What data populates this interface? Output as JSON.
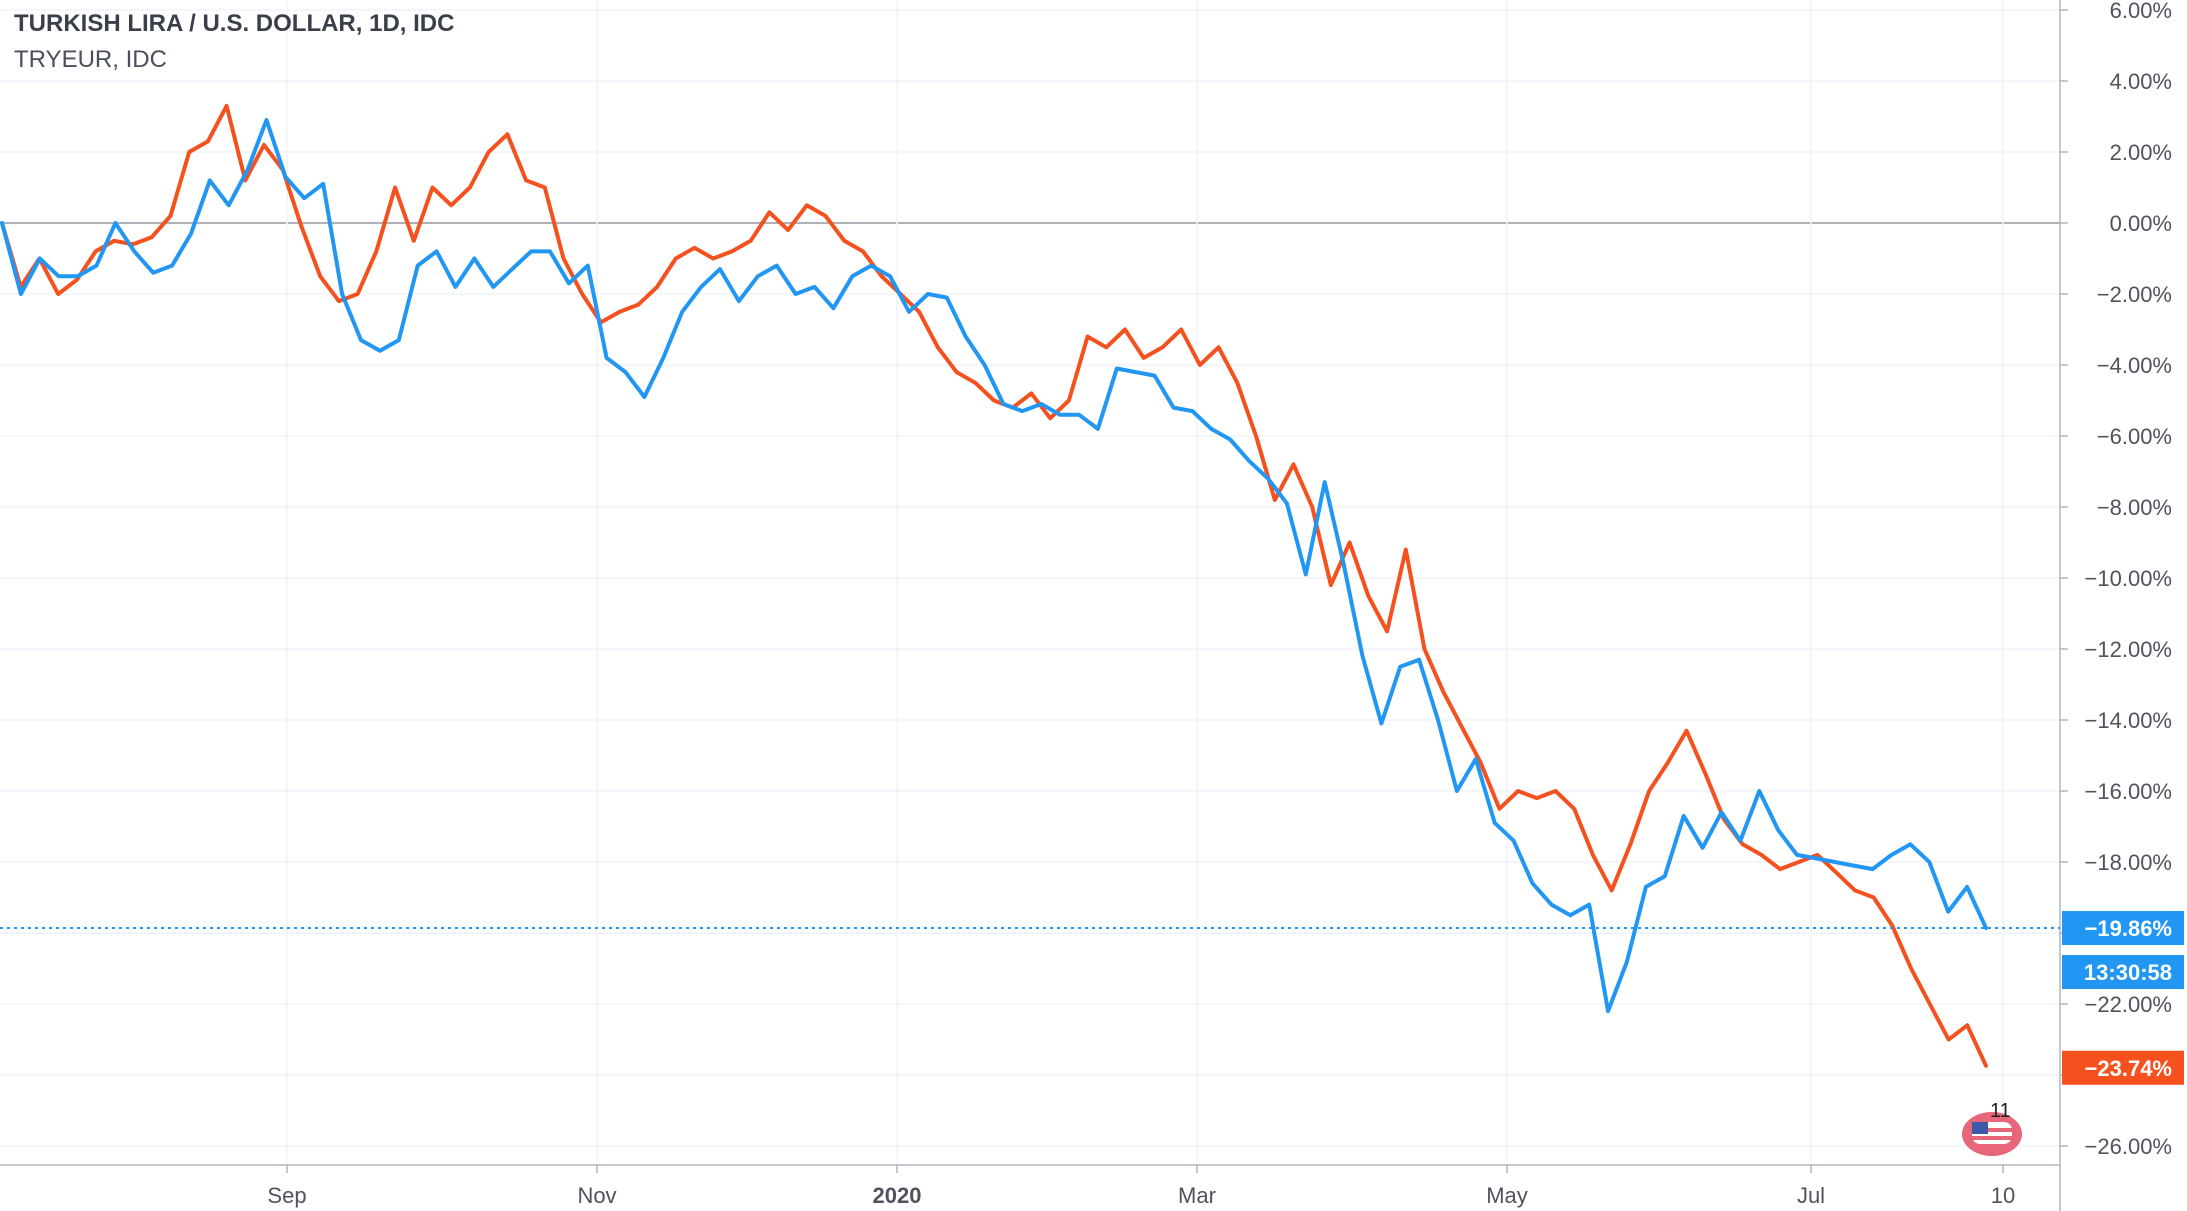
{
  "legend": {
    "title": "TURKISH LIRA / U.S. DOLLAR, 1D, IDC",
    "subtitle": "TRYEUR, IDC"
  },
  "badge": {
    "count": "11",
    "icon": "us-flag-icon"
  },
  "colors": {
    "series_tryusd": "#f4511e",
    "series_tryeur": "#2196f3",
    "grid": "#f0f3fa",
    "axis": "#b2b5be",
    "zero_line": "#9598a1"
  },
  "chart_data": {
    "type": "line",
    "xlabels": [
      "Sep",
      "Nov",
      "2020",
      "Mar",
      "May",
      "Jul",
      "10"
    ],
    "ylim": [
      -27,
      6.5
    ],
    "yticks": [
      6,
      4,
      2,
      0,
      -2,
      -4,
      -6,
      -8,
      -10,
      -12,
      -14,
      -16,
      -18,
      -20,
      -22,
      -24,
      -26
    ],
    "ytick_labels": [
      "6.00%",
      "4.00%",
      "2.00%",
      "0.00%",
      "−2.00%",
      "−4.00%",
      "−6.00%",
      "−8.00%",
      "−10.00%",
      "−12.00%",
      "−14.00%",
      "−16.00%",
      "−18.00%",
      "−20.00%",
      "−22.00%",
      "−24.00%",
      "−26.00%"
    ],
    "countdown": "13:30:58",
    "series": [
      {
        "name": "TRYEUR",
        "last_label": "−19.86%",
        "last_value": -19.86,
        "values": [
          0.0,
          -2.0,
          -1.0,
          -1.5,
          -1.5,
          -1.2,
          0.0,
          -0.8,
          -1.4,
          -1.2,
          -0.3,
          1.2,
          0.5,
          1.5,
          2.9,
          1.3,
          0.7,
          1.1,
          -2.0,
          -3.3,
          -3.6,
          -3.3,
          -1.2,
          -0.8,
          -1.8,
          -1.0,
          -1.8,
          -1.3,
          -0.8,
          -0.8,
          -1.7,
          -1.2,
          -3.8,
          -4.2,
          -4.9,
          -3.8,
          -2.5,
          -1.8,
          -1.3,
          -2.2,
          -1.5,
          -1.2,
          -2.0,
          -1.8,
          -2.4,
          -1.5,
          -1.2,
          -1.5,
          -2.5,
          -2.0,
          -2.1,
          -3.2,
          -4.0,
          -5.1,
          -5.3,
          -5.1,
          -5.4,
          -5.4,
          -5.8,
          -4.1,
          -4.2,
          -4.3,
          -5.2,
          -5.3,
          -5.8,
          -6.1,
          -6.7,
          -7.2,
          -7.9,
          -9.9,
          -7.3,
          -9.6,
          -12.2,
          -14.1,
          -12.5,
          -12.3,
          -14.0,
          -16.0,
          -15.1,
          -16.9,
          -17.4,
          -18.6,
          -19.2,
          -19.5,
          -19.2,
          -22.2,
          -20.8,
          -18.7,
          -18.4,
          -16.7,
          -17.6,
          -16.6,
          -17.4,
          -16.0,
          -17.1,
          -17.8,
          -17.9,
          -18.0,
          -18.1,
          -18.2,
          -17.8,
          -17.5,
          -18.0,
          -19.4,
          -18.7,
          -19.86
        ]
      },
      {
        "name": "TURKISH LIRA / U.S. DOLLAR",
        "last_label": "−23.74%",
        "last_value": -23.74,
        "values": [
          0.0,
          -1.8,
          -1.0,
          -2.0,
          -1.6,
          -0.8,
          -0.5,
          -0.6,
          -0.4,
          0.2,
          2.0,
          2.3,
          3.3,
          1.2,
          2.2,
          1.5,
          -0.1,
          -1.5,
          -2.2,
          -2.0,
          -0.8,
          1.0,
          -0.5,
          1.0,
          0.5,
          1.0,
          2.0,
          2.5,
          1.2,
          1.0,
          -1.0,
          -2.0,
          -2.8,
          -2.5,
          -2.3,
          -1.8,
          -1.0,
          -0.7,
          -1.0,
          -0.8,
          -0.5,
          0.3,
          -0.2,
          0.5,
          0.2,
          -0.5,
          -0.8,
          -1.5,
          -2.0,
          -2.5,
          -3.5,
          -4.2,
          -4.5,
          -5.0,
          -5.2,
          -4.8,
          -5.5,
          -5.0,
          -3.2,
          -3.5,
          -3.0,
          -3.8,
          -3.5,
          -3.0,
          -4.0,
          -3.5,
          -4.5,
          -6.0,
          -7.8,
          -6.8,
          -8.0,
          -10.2,
          -9.0,
          -10.5,
          -11.5,
          -9.2,
          -12.0,
          -13.2,
          -14.2,
          -15.2,
          -16.5,
          -16.0,
          -16.2,
          -16.0,
          -16.5,
          -17.8,
          -18.8,
          -17.5,
          -16.0,
          -15.2,
          -14.3,
          -15.5,
          -16.8,
          -17.5,
          -17.8,
          -18.2,
          -18.0,
          -17.8,
          -18.3,
          -18.8,
          -19.0,
          -19.8,
          -21.0,
          -22.0,
          -23.0,
          -22.6,
          -23.74
        ]
      }
    ]
  }
}
